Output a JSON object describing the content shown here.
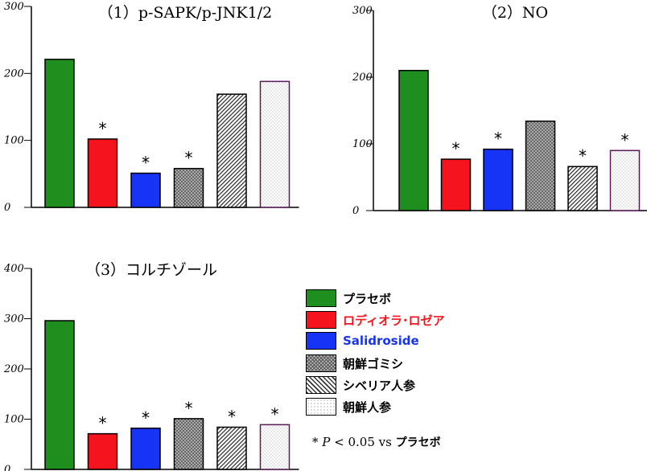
{
  "colors": {
    "placebo": "#1e8f1e",
    "rhodiola": "#f5141e",
    "salidroside": "#1733f5",
    "text_rhodiola": "#f5141e",
    "text_salidroside": "#1733f5"
  },
  "chart_data": [
    {
      "type": "bar",
      "title": "（1）p-SAPK/p-JNK1/2",
      "yticks": [
        "0",
        "100",
        "200",
        "300"
      ],
      "ylim": [
        0,
        300
      ],
      "values": [
        221,
        102,
        51,
        58,
        169,
        188
      ],
      "significant": [
        false,
        true,
        true,
        true,
        false,
        false
      ]
    },
    {
      "type": "bar",
      "title": "（2）NO",
      "yticks": [
        "0",
        "100",
        "200",
        "300"
      ],
      "ylim": [
        0,
        300
      ],
      "values": [
        210,
        77,
        92,
        134,
        66,
        90
      ],
      "significant": [
        false,
        true,
        true,
        false,
        true,
        true
      ]
    },
    {
      "type": "bar",
      "title": "（3）コルチゾール",
      "yticks": [
        "0",
        "100",
        "200",
        "300",
        "400"
      ],
      "ylim": [
        0,
        400
      ],
      "values": [
        296,
        71,
        82,
        101,
        84,
        89
      ],
      "significant": [
        false,
        true,
        true,
        true,
        true,
        true
      ]
    }
  ],
  "legend": [
    {
      "label": "プラセボ",
      "pattern": "placebo"
    },
    {
      "label": "ロディオラ･ロゼア",
      "pattern": "rhodiola"
    },
    {
      "label": "Salidroside",
      "pattern": "salidroside"
    },
    {
      "label": "朝鮮ゴミシ",
      "pattern": "crosshatch"
    },
    {
      "label": "シベリア人参",
      "pattern": "diagonal"
    },
    {
      "label": "朝鮮人参",
      "pattern": "dots"
    }
  ],
  "significance_marker": "*",
  "note": {
    "star": "* ",
    "p": "P",
    "condition": " < 0.05 vs ",
    "reference": "プラセボ"
  }
}
